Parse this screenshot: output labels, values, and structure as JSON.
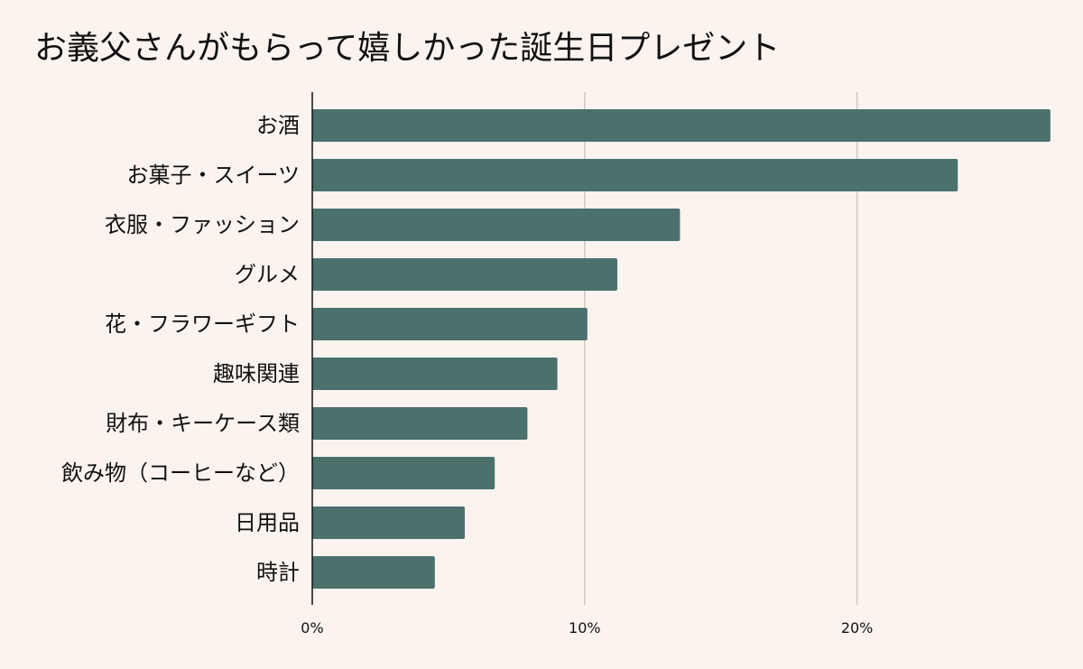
{
  "chart_data": {
    "type": "bar",
    "orientation": "horizontal",
    "title": "お義父さんがもらって嬉しかった誕生日プレゼント",
    "categories": [
      "お酒",
      "お菓子・スイーツ",
      "衣服・ファッション",
      "グルメ",
      "花・フラワーギフト",
      "趣味関連",
      "財布・キーケース類",
      "飲み物（コーヒーなど）",
      "日用品",
      "時計"
    ],
    "values": [
      27.1,
      23.7,
      13.5,
      11.2,
      10.1,
      9.0,
      7.9,
      6.7,
      5.6,
      4.5
    ],
    "xlim": [
      0,
      27.1
    ],
    "xticks": [
      0,
      10,
      20
    ],
    "tick_labels": [
      "0%",
      "10%",
      "20%"
    ],
    "grid": true,
    "legend": "none",
    "colors": {
      "bar": "#4b716d",
      "background": "#fbf3ee",
      "grid": "#cfc7c3",
      "axis": "#111111"
    }
  }
}
